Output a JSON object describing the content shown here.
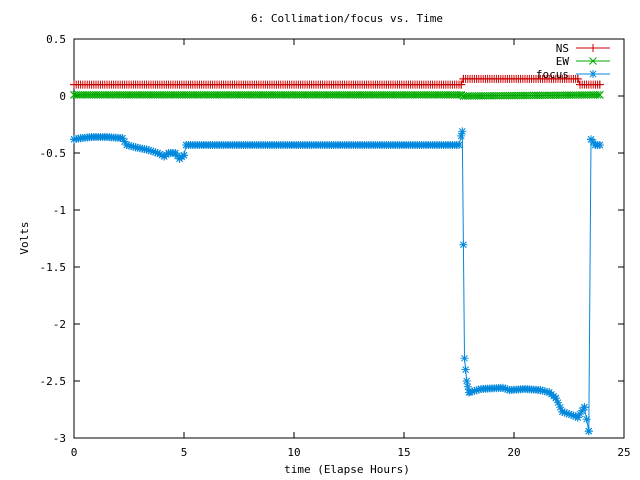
{
  "chart_data": {
    "type": "line",
    "title": "6: Collimation/focus vs. Time",
    "xlabel": "time (Elapse Hours)",
    "ylabel": "Volts",
    "xlim": [
      0,
      25
    ],
    "ylim": [
      -3,
      0.5
    ],
    "x_ticks": [
      0,
      5,
      10,
      15,
      20,
      25
    ],
    "y_ticks": [
      0.5,
      0,
      -0.5,
      -1,
      -1.5,
      -2,
      -2.5,
      -3
    ],
    "x_tick_labels": [
      "0",
      "5",
      "10",
      "15",
      "20",
      "25"
    ],
    "y_tick_labels": [
      "0.5",
      "0",
      "-0.5",
      "-1",
      "-1.5",
      "-2",
      "-2.5",
      "-3"
    ],
    "grid": false,
    "legend_position": "top-right",
    "series": [
      {
        "name": "NS",
        "color": "#cc0000",
        "marker": "plus",
        "x": [
          0,
          17.6,
          17.7,
          22.9,
          23.0,
          23.9
        ],
        "y": [
          0.1,
          0.1,
          0.15,
          0.15,
          0.1,
          0.1
        ]
      },
      {
        "name": "EW",
        "color": "#00aa00",
        "marker": "cross",
        "x": [
          0,
          17.6,
          17.7,
          23.9
        ],
        "y": [
          0.01,
          0.01,
          0.0,
          0.01
        ]
      },
      {
        "name": "focus",
        "color": "#0088dd",
        "marker": "star",
        "x": [
          0,
          0.3,
          0.8,
          1.5,
          2.2,
          2.4,
          2.8,
          3.3,
          3.8,
          4.1,
          4.3,
          4.6,
          4.8,
          5.0,
          5.1,
          6,
          10,
          15,
          17.5,
          17.65,
          17.75,
          17.85,
          17.95,
          18.5,
          19.5,
          19.8,
          20.5,
          21.2,
          21.6,
          21.9,
          22.2,
          22.5,
          22.8,
          22.9,
          23.2,
          23.4,
          23.5,
          23.7,
          23.9
        ],
        "y": [
          -0.38,
          -0.37,
          -0.36,
          -0.36,
          -0.37,
          -0.43,
          -0.45,
          -0.47,
          -0.5,
          -0.53,
          -0.5,
          -0.5,
          -0.55,
          -0.52,
          -0.43,
          -0.43,
          -0.43,
          -0.43,
          -0.43,
          -0.31,
          -2.3,
          -2.5,
          -2.6,
          -2.57,
          -2.56,
          -2.58,
          -2.57,
          -2.58,
          -2.6,
          -2.65,
          -2.77,
          -2.79,
          -2.81,
          -2.82,
          -2.73,
          -2.94,
          -0.38,
          -0.43,
          -0.43
        ]
      }
    ]
  }
}
